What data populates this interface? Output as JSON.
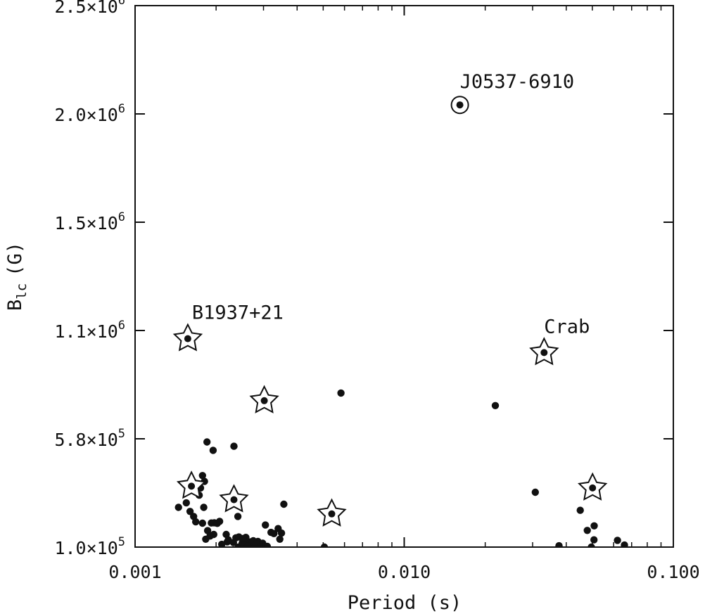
{
  "chart_data": {
    "type": "scatter",
    "xlabel": "Period (s)",
    "ylabel": "B",
    "ylabel_sub": "lc",
    "ylabel_unit": "(G)",
    "xscale": "log",
    "xlim": [
      0.001,
      0.1
    ],
    "ylim": [
      100000,
      2500000
    ],
    "xticks": [
      {
        "value": 0.001,
        "label": "0.001"
      },
      {
        "value": 0.01,
        "label": "0.010"
      },
      {
        "value": 0.1,
        "label": "0.100"
      }
    ],
    "yticks": [
      {
        "value": 100000,
        "mant": "1.0",
        "exp": "5"
      },
      {
        "value": 580000,
        "mant": "5.8",
        "exp": "5"
      },
      {
        "value": 1060000,
        "mant": "1.1",
        "exp": "6"
      },
      {
        "value": 1540000,
        "mant": "1.5",
        "exp": "6"
      },
      {
        "value": 2020000,
        "mant": "2.0",
        "exp": "6"
      },
      {
        "value": 2500000,
        "mant": "2.5",
        "exp": "6"
      }
    ],
    "grid": false,
    "points": [
      [
        0.00145,
        276000
      ],
      [
        0.00155,
        296000
      ],
      [
        0.00165,
        236000
      ],
      [
        0.00168,
        212000
      ],
      [
        0.0016,
        258000
      ],
      [
        0.00173,
        330000
      ],
      [
        0.00175,
        362000
      ],
      [
        0.0018,
        276000
      ],
      [
        0.00185,
        566000
      ],
      [
        0.00195,
        529000
      ],
      [
        0.00178,
        417000
      ],
      [
        0.00181,
        391000
      ],
      [
        0.00178,
        206000
      ],
      [
        0.00186,
        173000
      ],
      [
        0.00192,
        207000
      ],
      [
        0.00197,
        208000
      ],
      [
        0.00202,
        205000
      ],
      [
        0.00206,
        214000
      ],
      [
        0.00183,
        135000
      ],
      [
        0.0019,
        149000
      ],
      [
        0.00196,
        156000
      ],
      [
        0.00218,
        156000
      ],
      [
        0.00222,
        132000
      ],
      [
        0.00232,
        120000
      ],
      [
        0.00237,
        141000
      ],
      [
        0.00243,
        145000
      ],
      [
        0.0025,
        118000
      ],
      [
        0.00256,
        130000
      ],
      [
        0.00262,
        120000
      ],
      [
        0.00268,
        123000
      ],
      [
        0.00242,
        100000
      ],
      [
        0.00248,
        103000
      ],
      [
        0.00254,
        109000
      ],
      [
        0.0026,
        98000
      ],
      [
        0.00265,
        102000
      ],
      [
        0.00272,
        106000
      ],
      [
        0.00276,
        98000
      ],
      [
        0.00258,
        143000
      ],
      [
        0.00266,
        108000
      ],
      [
        0.00286,
        125000
      ],
      [
        0.00298,
        117000
      ],
      [
        0.0031,
        103000
      ],
      [
        0.00305,
        198000
      ],
      [
        0.0032,
        165000
      ],
      [
        0.00328,
        160000
      ],
      [
        0.0034,
        182000
      ],
      [
        0.0035,
        162000
      ],
      [
        0.00357,
        290000
      ],
      [
        0.00345,
        135000
      ],
      [
        0.00275,
        128000
      ],
      [
        0.00233,
        547000
      ],
      [
        0.00505,
        100000
      ],
      [
        0.00582,
        783000
      ],
      [
        0.00241,
        236000
      ],
      [
        0.00262,
        105000
      ],
      [
        0.00252,
        138000
      ],
      [
        0.0022,
        123000
      ],
      [
        0.0021,
        112000
      ],
      [
        0.00282,
        112000
      ],
      [
        0.00291,
        100000
      ],
      [
        0.0218,
        727000
      ],
      [
        0.0307,
        343000
      ],
      [
        0.0376,
        106000
      ],
      [
        0.0451,
        263000
      ],
      [
        0.0479,
        174000
      ],
      [
        0.0508,
        194000
      ],
      [
        0.0507,
        132000
      ],
      [
        0.062,
        130000
      ],
      [
        0.0658,
        109000
      ],
      [
        0.0496,
        100000
      ]
    ],
    "stars": [
      [
        0.00157,
        1024000
      ],
      [
        0.00162,
        370000
      ],
      [
        0.00233,
        310000
      ],
      [
        0.00302,
        749000
      ],
      [
        0.00538,
        247000
      ],
      [
        0.0331,
        962000
      ],
      [
        0.0501,
        362000
      ]
    ],
    "special": [
      [
        0.0161,
        2060000
      ]
    ],
    "annotations": [
      {
        "text": "J0537-6910",
        "x": 0.0161,
        "y": 2060000
      },
      {
        "text": "B1937+21",
        "x": 0.00157,
        "y": 1024000
      },
      {
        "text": "Crab",
        "x": 0.0331,
        "y": 962000
      }
    ]
  }
}
